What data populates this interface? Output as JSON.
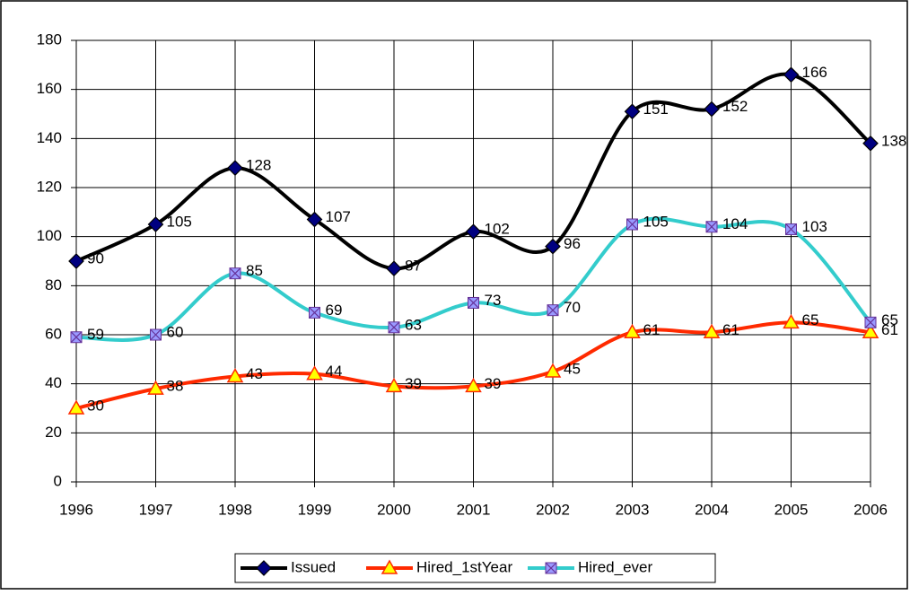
{
  "chart_data": {
    "type": "line",
    "smooth": true,
    "grid": true,
    "legend": "bottom",
    "categories": [
      "1996",
      "1997",
      "1998",
      "1999",
      "2000",
      "2001",
      "2002",
      "2003",
      "2004",
      "2005",
      "2006"
    ],
    "ylim": [
      0,
      180
    ],
    "yticks": [
      0,
      20,
      40,
      60,
      80,
      100,
      120,
      140,
      160,
      180
    ],
    "series": [
      {
        "name": "Issued",
        "color": "#000000",
        "marker": "diamond",
        "marker_color": "#000080",
        "values": [
          90,
          105,
          128,
          107,
          87,
          102,
          96,
          151,
          152,
          166,
          138
        ]
      },
      {
        "name": "Hired_1stYear",
        "color": "#ff2a00",
        "marker": "triangle",
        "marker_color": "#ffff00",
        "values": [
          30,
          38,
          43,
          44,
          39,
          39,
          45,
          61,
          61,
          65,
          61
        ]
      },
      {
        "name": "Hired_ever",
        "color": "#33cccc",
        "marker": "square-x",
        "marker_color": "#9999ff",
        "values": [
          59,
          60,
          85,
          69,
          63,
          73,
          70,
          105,
          104,
          103,
          65
        ]
      }
    ]
  }
}
